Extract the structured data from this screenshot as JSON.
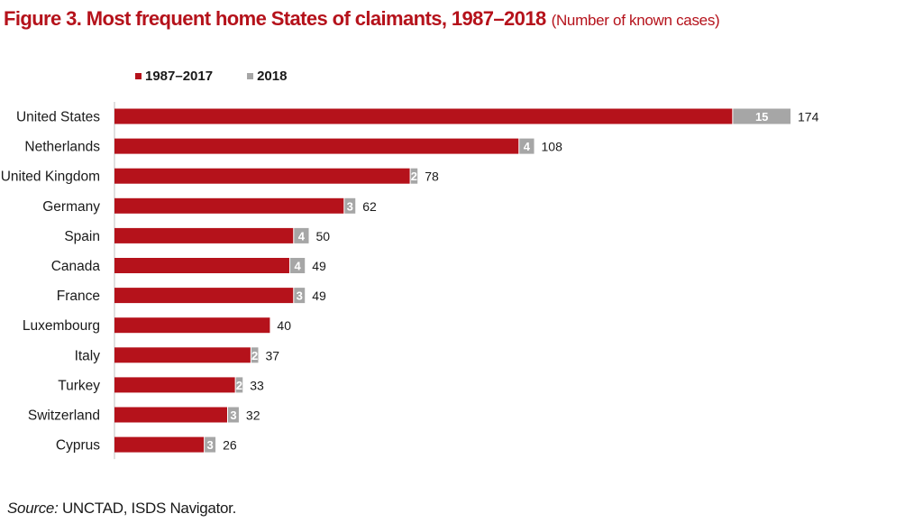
{
  "chart_data": {
    "type": "bar",
    "orientation": "horizontal",
    "stacked": true,
    "title": "Figure 3. Most frequent home States of claimants, 1987–2018",
    "subtitle": "(Number of known cases)",
    "categories": [
      "United States",
      "Netherlands",
      "United Kingdom",
      "Germany",
      "Spain",
      "Canada",
      "France",
      "Luxembourg",
      "Italy",
      "Turkey",
      "Switzerland",
      "Cyprus"
    ],
    "series": [
      {
        "name": "1987–2017",
        "color": "#b5121b",
        "values": [
          159,
          104,
          76,
          59,
          46,
          45,
          46,
          40,
          35,
          31,
          29,
          23
        ]
      },
      {
        "name": "2018",
        "color": "#a6a6a6",
        "values": [
          15,
          4,
          2,
          3,
          4,
          4,
          3,
          null,
          2,
          2,
          3,
          3
        ]
      }
    ],
    "segment_labels_2018": [
      "15",
      "4",
      "2",
      "3",
      "4",
      "4",
      "3",
      "",
      "2",
      "2",
      "3",
      "3"
    ],
    "totals": [
      174,
      108,
      78,
      62,
      50,
      49,
      49,
      40,
      37,
      33,
      32,
      26
    ],
    "xlim": [
      0,
      174
    ],
    "grid": false,
    "legend_position": "top-left"
  },
  "source": {
    "label": "Source:",
    "text": "UNCTAD, ISDS Navigator."
  }
}
